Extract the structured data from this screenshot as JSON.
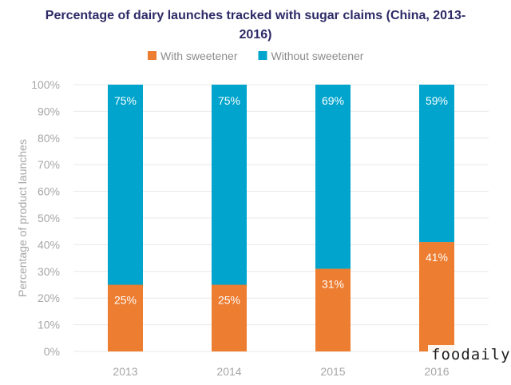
{
  "chart_data": {
    "type": "bar",
    "stacked": true,
    "title_line1": "Percentage of dairy launches tracked with sugar claims (China, 2013-",
    "title_line2": "2016)",
    "ylabel": "Percentage of product launches",
    "xlabel": "",
    "ylim": [
      0,
      100
    ],
    "yticks": [
      0,
      10,
      20,
      30,
      40,
      50,
      60,
      70,
      80,
      90,
      100
    ],
    "ytick_suffix": "%",
    "grid": true,
    "legend_position": "top-center",
    "categories": [
      "2013",
      "2014",
      "2015",
      "2016"
    ],
    "series": [
      {
        "name": "With sweetener",
        "values": [
          25,
          25,
          31,
          41
        ],
        "labels": [
          "25%",
          "25%",
          "31%",
          "41%"
        ],
        "color": "#ed7d31"
      },
      {
        "name": "Without sweetener",
        "values": [
          75,
          75,
          69,
          59
        ],
        "labels": [
          "75%",
          "75%",
          "69%",
          "59%"
        ],
        "color": "#00a4cc"
      }
    ]
  },
  "watermark": {
    "text": "foodaily"
  },
  "colors": {
    "title": "#2d2a66",
    "axis_text": "#a6a6a6",
    "grid": "#e8e8e8"
  }
}
